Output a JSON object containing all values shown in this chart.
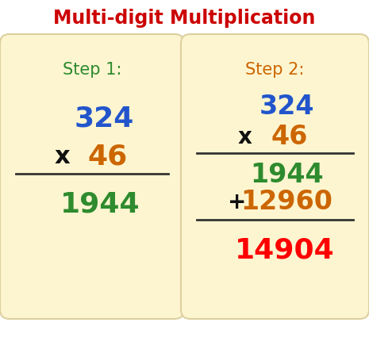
{
  "title": "Multi-digit Multiplication",
  "title_color": "#cc0000",
  "title_fontsize": 17,
  "bg_color": "#ffffff",
  "box_color": "#fdf5d0",
  "box_edge_color": "#ddd0a0",
  "step1": {
    "label": "Step 1:",
    "label_color": "#2e8b2e",
    "num1": "324",
    "num1_color": "#2255cc",
    "x_sym": "x",
    "x_color": "#111111",
    "num2": "46",
    "num2_color": "#cc6600",
    "result": "1944",
    "result_color": "#2e8b2e"
  },
  "step2": {
    "label": "Step 2:",
    "label_color": "#cc6600",
    "num1": "324",
    "num1_color": "#2255cc",
    "x_sym": "x",
    "x_color": "#111111",
    "num2": "46",
    "num2_color": "#cc6600",
    "partial1": "1944",
    "partial1_color": "#2e8b2e",
    "plus_sym": "+",
    "plus_color": "#111111",
    "partial2": "12960",
    "partial2_color": "#cc6600",
    "result": "14904",
    "result_color": "#ff0000"
  }
}
